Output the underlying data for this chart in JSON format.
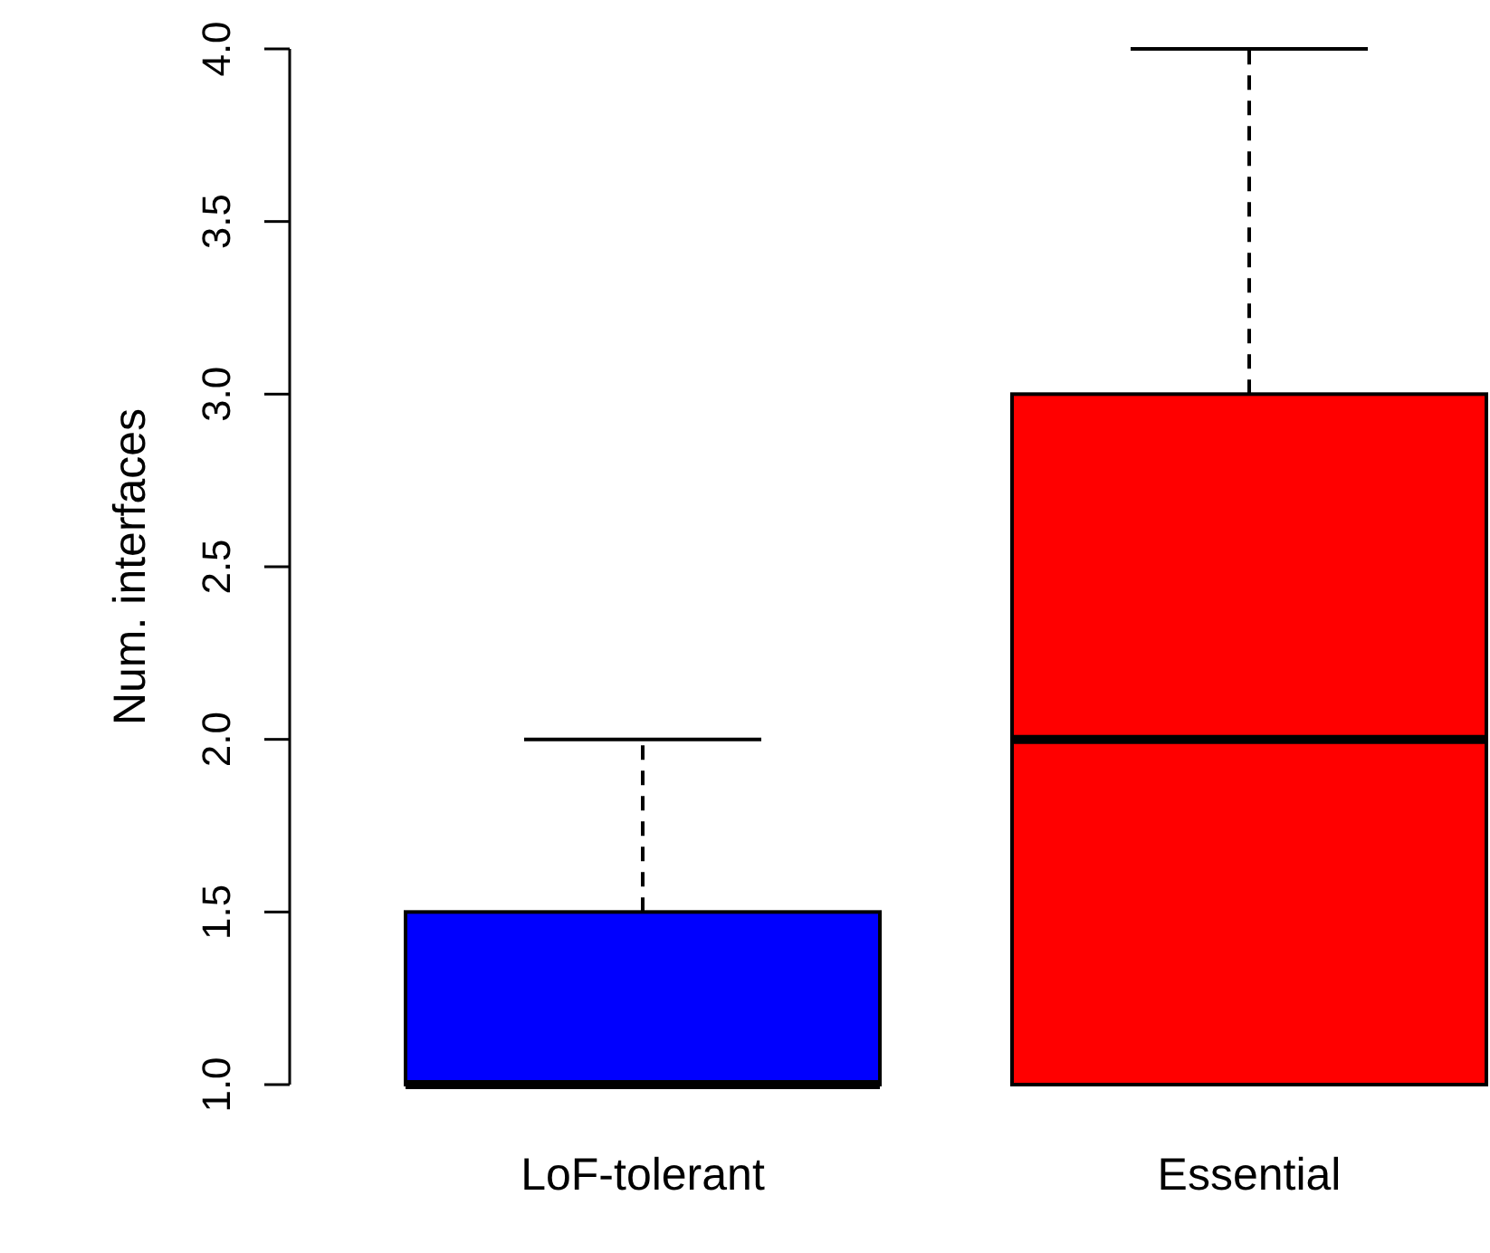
{
  "chart_data": {
    "type": "box",
    "ylabel": "Num. interfaces",
    "categories": [
      "LoF-tolerant",
      "Essential"
    ],
    "colors": [
      "#0000ff",
      "#ff0000"
    ],
    "boxes": [
      {
        "low": 1,
        "q1": 1,
        "median": 1,
        "q3": 1.5,
        "high": 2
      },
      {
        "low": 1,
        "q1": 1,
        "median": 2,
        "q3": 3,
        "high": 4
      }
    ],
    "ylim": [
      1,
      4
    ],
    "yticks": [
      {
        "value": 1,
        "label": "1.0"
      },
      {
        "value": 1.5,
        "label": "1.5"
      },
      {
        "value": 2,
        "label": "2.0"
      },
      {
        "value": 2.5,
        "label": "2.5"
      },
      {
        "value": 3,
        "label": "3.0"
      },
      {
        "value": 3.5,
        "label": "3.5"
      },
      {
        "value": 4,
        "label": "4.0"
      }
    ]
  }
}
